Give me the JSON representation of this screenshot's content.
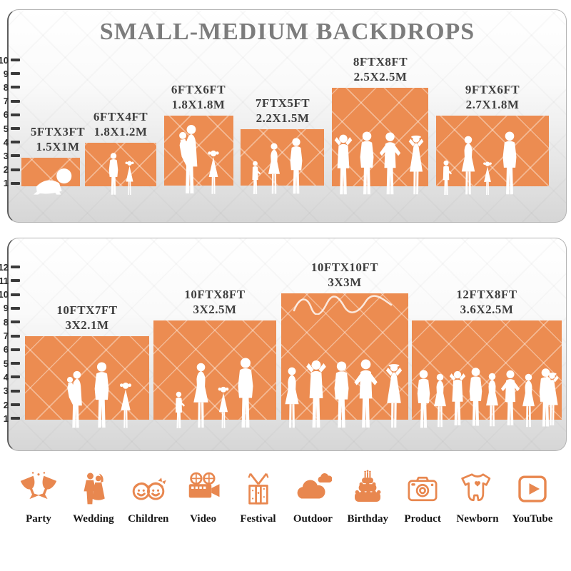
{
  "colors": {
    "backdrop_orange": "#EC8C51",
    "icon_orange": "#E8874F",
    "title_gray": "#7c7c7c",
    "label_gray": "#3e3e3e"
  },
  "panels": {
    "small": {
      "title": "SMALL-MEDIUM BACKDROPS",
      "ruler": [
        "10",
        "9",
        "8",
        "7",
        "6",
        "5",
        "4",
        "3",
        "2",
        "1"
      ],
      "backdrops": [
        {
          "ft": "5FTX3FT",
          "m": "1.5X1M"
        },
        {
          "ft": "6FTX4FT",
          "m": "1.8X1.2M"
        },
        {
          "ft": "6FTX6FT",
          "m": "1.8X1.8M"
        },
        {
          "ft": "7FTX5FT",
          "m": "2.2X1.5M"
        },
        {
          "ft": "8FTX8FT",
          "m": "2.5X2.5M"
        },
        {
          "ft": "9FTX6FT",
          "m": "2.7X1.8M"
        }
      ]
    },
    "large": {
      "ruler": [
        "12",
        "11",
        "10",
        "9",
        "8",
        "7",
        "6",
        "5",
        "4",
        "3",
        "2",
        "1"
      ],
      "backdrops": [
        {
          "ft": "10FTX7FT",
          "m": "3X2.1M"
        },
        {
          "ft": "10FTX8FT",
          "m": "3X2.5M"
        },
        {
          "ft": "10FTX10FT",
          "m": "3X3M"
        },
        {
          "ft": "12FTX8FT",
          "m": "3.6X2.5M"
        }
      ]
    }
  },
  "categories": [
    {
      "label": "Party",
      "icon": "party-glasses-icon"
    },
    {
      "label": "Wedding",
      "icon": "wedding-couple-icon"
    },
    {
      "label": "Children",
      "icon": "children-faces-icon"
    },
    {
      "label": "Video",
      "icon": "video-camera-icon"
    },
    {
      "label": "Festival",
      "icon": "gift-box-icon"
    },
    {
      "label": "Outdoor",
      "icon": "clouds-icon"
    },
    {
      "label": "Birthday",
      "icon": "birthday-cake-icon"
    },
    {
      "label": "Product",
      "icon": "photo-camera-icon"
    },
    {
      "label": "Newborn",
      "icon": "baby-onesie-icon"
    },
    {
      "label": "YouTube",
      "icon": "play-button-icon"
    }
  ]
}
